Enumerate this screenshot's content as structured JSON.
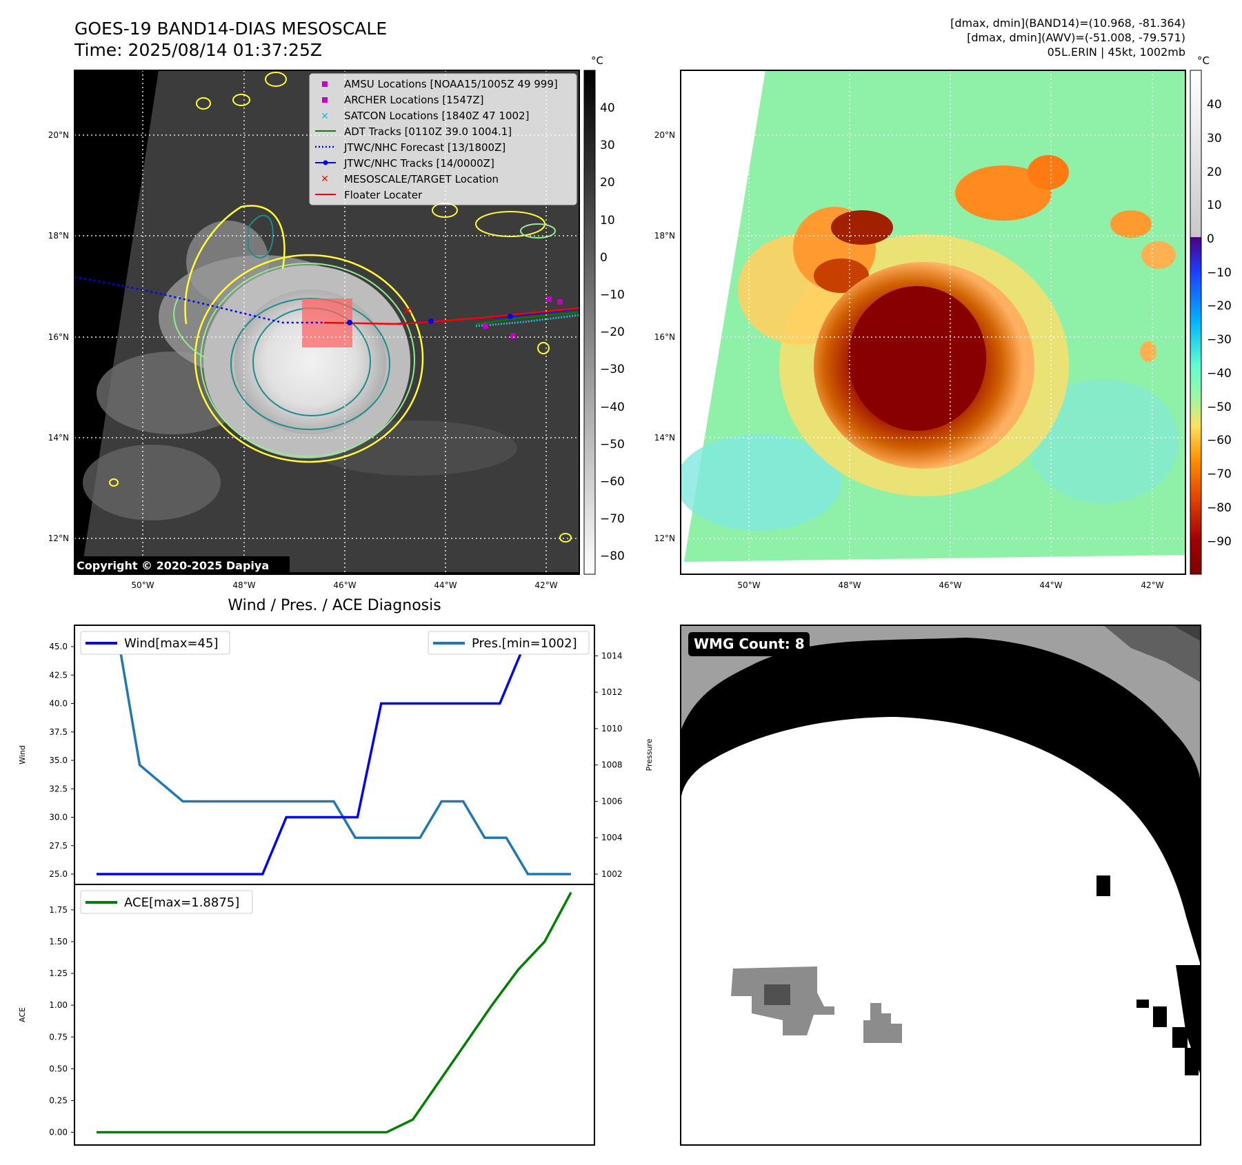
{
  "header": {
    "title": "GOES-19 BAND14-DIAS MESOSCALE",
    "time": "Time: 2025/08/14 01:37:25Z",
    "stats_line1": "[dmax, dmin](BAND14)=(10.968, -81.364)",
    "stats_line2": "[dmax, dmin](AWV)=(-51.008, -79.571)",
    "stats_line3": "05L.ERIN | 45kt, 1002mb"
  },
  "map_axes": {
    "lat_labels": [
      "20°N",
      "18°N",
      "16°N",
      "14°N",
      "12°N"
    ],
    "lon_labels": [
      "50°W",
      "48°W",
      "46°W",
      "44°W",
      "42°W"
    ],
    "copyright": "Copyright © 2020-2025 Dapiya"
  },
  "colorbar_left": {
    "unit": "°C",
    "ticks": [
      "40",
      "30",
      "20",
      "10",
      "0",
      "−10",
      "−20",
      "−30",
      "−40",
      "−50",
      "−60",
      "−70",
      "−80"
    ]
  },
  "colorbar_right": {
    "unit": "°C",
    "ticks": [
      "40",
      "30",
      "20",
      "10",
      "0",
      "−10",
      "−20",
      "−30",
      "−40",
      "−50",
      "−60",
      "−70",
      "−80",
      "−90"
    ]
  },
  "legend": [
    {
      "label": "AMSU Locations [NOAA15/1005Z 49 999]",
      "marker": "square",
      "color": "#c000c0"
    },
    {
      "label": "ARCHER Locations [1547Z]",
      "marker": "square",
      "color": "#c000c0"
    },
    {
      "label": "SATCON Locations [1840Z 47 1002]",
      "marker": "x",
      "color": "#17becf"
    },
    {
      "label": "ADT Tracks [0110Z 39.0 1004.1]",
      "marker": "line",
      "color": "#008000"
    },
    {
      "label": "JTWC/NHC Forecast [13/1800Z]",
      "marker": "dotted",
      "color": "#0000ff"
    },
    {
      "label": "JTWC/NHC Tracks [14/0000Z]",
      "marker": "line-dot",
      "color": "#0000ff"
    },
    {
      "label": "MESOSCALE/TARGET Location",
      "marker": "x",
      "color": "#ff0000"
    },
    {
      "label": "Floater Locater",
      "marker": "line",
      "color": "#ff0000"
    }
  ],
  "diag_title": "Wind / Pres. / ACE Diagnosis",
  "wmg_label": "WMG Count: 8",
  "colors": {
    "wind": "#0000ff",
    "pressure": "#1f77b4",
    "ace": "#008000"
  },
  "chart_data": [
    {
      "type": "line",
      "y_axis_label": "Wind",
      "y2_axis_label": "Pressure",
      "ylim": [
        25.0,
        45.0
      ],
      "y2lim": [
        1002,
        1015
      ],
      "yticks": [
        "45.0",
        "42.5",
        "40.0",
        "37.5",
        "35.0",
        "32.5",
        "30.0",
        "27.5",
        "25.0"
      ],
      "y2ticks": [
        "1014",
        "1012",
        "1010",
        "1008",
        "1006",
        "1004",
        "1002"
      ],
      "legend": [
        "Wind[max=45]",
        "Pres.[min=1002]"
      ],
      "series": [
        {
          "name": "Wind[max=45]",
          "values": [
            25,
            25,
            25,
            25,
            25,
            25,
            25,
            25,
            30,
            30,
            30,
            30,
            40,
            40,
            40,
            40,
            40,
            40,
            45,
            45,
            45
          ]
        },
        {
          "name": "Pres.[min=1002]",
          "values": [
            1015,
            1015,
            1008,
            1007,
            1006,
            1006,
            1006,
            1006,
            1006,
            1006,
            1006,
            1006,
            1004,
            1004,
            1004,
            1004,
            1006,
            1006,
            1004,
            1004,
            1002,
            1002,
            1002
          ]
        }
      ]
    },
    {
      "type": "line",
      "y_axis_label": "ACE",
      "ylim": [
        -0.1,
        1.95
      ],
      "yticks": [
        "1.75",
        "1.50",
        "1.25",
        "1.00",
        "0.75",
        "0.50",
        "0.25",
        "0.00"
      ],
      "legend": [
        "ACE[max=1.8875]"
      ],
      "series": [
        {
          "name": "ACE[max=1.8875]",
          "values": [
            0,
            0,
            0,
            0,
            0,
            0,
            0,
            0,
            0,
            0,
            0,
            0,
            0.1,
            0.4,
            0.7,
            1.0,
            1.28,
            1.5,
            1.8875
          ]
        }
      ]
    }
  ]
}
